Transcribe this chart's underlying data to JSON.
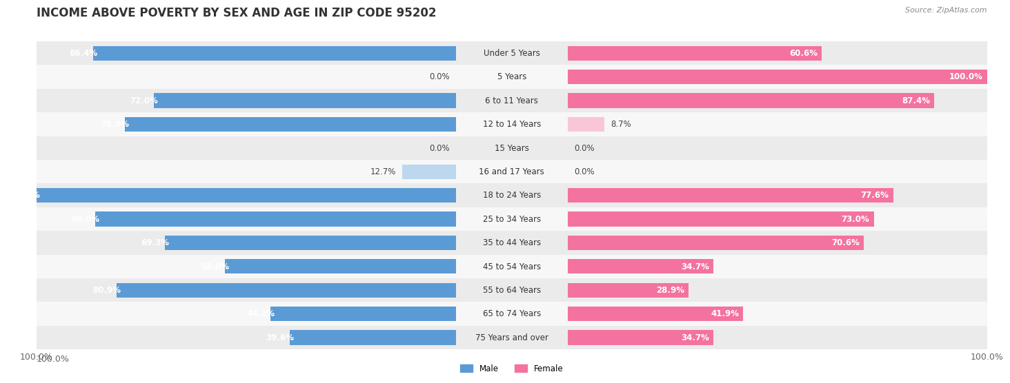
{
  "title": "INCOME ABOVE POVERTY BY SEX AND AGE IN ZIP CODE 95202",
  "source": "Source: ZipAtlas.com",
  "categories": [
    "Under 5 Years",
    "5 Years",
    "6 to 11 Years",
    "12 to 14 Years",
    "15 Years",
    "16 and 17 Years",
    "18 to 24 Years",
    "25 to 34 Years",
    "35 to 44 Years",
    "45 to 54 Years",
    "55 to 64 Years",
    "65 to 74 Years",
    "75 Years and over"
  ],
  "male": [
    86.4,
    0.0,
    72.0,
    78.9,
    0.0,
    12.7,
    100.0,
    86.0,
    69.3,
    55.0,
    80.9,
    44.2,
    39.6
  ],
  "female": [
    60.6,
    100.0,
    87.4,
    8.7,
    0.0,
    0.0,
    77.6,
    73.0,
    70.6,
    34.7,
    28.9,
    41.9,
    34.7
  ],
  "male_color_dark": "#5b9bd5",
  "male_color_light": "#bdd7ee",
  "female_color_dark": "#f472a0",
  "female_color_light": "#f9c6d8",
  "male_label": "Male",
  "female_label": "Female",
  "row_bg_odd": "#ebebeb",
  "row_bg_even": "#f7f7f7",
  "bar_height": 0.62,
  "xlim": 100,
  "title_fontsize": 12,
  "label_fontsize": 8.5,
  "tick_fontsize": 9,
  "cat_fontsize": 8.5,
  "value_threshold": 15
}
